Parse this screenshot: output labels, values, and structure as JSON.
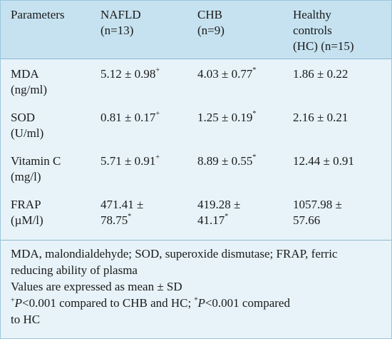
{
  "table": {
    "header": {
      "parameters": "Parameters",
      "nafld_1": "NAFLD",
      "nafld_2": "(n=13)",
      "chb_1": "CHB",
      "chb_2": "(n=9)",
      "hc_1": "Healthy",
      "hc_2": "controls",
      "hc_3": "(HC) (n=15)"
    },
    "rows": [
      {
        "param_1": "MDA",
        "param_2": "(ng/ml)",
        "nafld_1": "5.12 ± 0.98",
        "nafld_1_sup": "+",
        "nafld_2": "",
        "nafld_2_sup": "",
        "chb_1": "4.03 ± 0.77",
        "chb_1_sup": "*",
        "chb_2": "",
        "chb_2_sup": "",
        "hc_1": "1.86 ± 0.22",
        "hc_2": ""
      },
      {
        "param_1": "SOD",
        "param_2": "(U/ml)",
        "nafld_1": "0.81 ± 0.17",
        "nafld_1_sup": "+",
        "nafld_2": "",
        "nafld_2_sup": "",
        "chb_1": "1.25 ± 0.19",
        "chb_1_sup": "*",
        "chb_2": "",
        "chb_2_sup": "",
        "hc_1": "2.16 ± 0.21",
        "hc_2": ""
      },
      {
        "param_1": "Vitamin C",
        "param_2": "(mg/l)",
        "nafld_1": "5.71 ± 0.91",
        "nafld_1_sup": "+",
        "nafld_2": "",
        "nafld_2_sup": "",
        "chb_1": "8.89 ± 0.55",
        "chb_1_sup": "*",
        "chb_2": "",
        "chb_2_sup": "",
        "hc_1": "12.44 ± 0.91",
        "hc_2": ""
      },
      {
        "param_1": "FRAP",
        "param_2": "(µM/l)",
        "nafld_1": "471.41 ±",
        "nafld_1_sup": "",
        "nafld_2": "78.75",
        "nafld_2_sup": "*",
        "chb_1": "419.28 ±",
        "chb_1_sup": "",
        "chb_2": "41.17",
        "chb_2_sup": "*",
        "hc_1": "1057.98 ±",
        "hc_2": "57.66"
      }
    ]
  },
  "footnotes": {
    "abbrev": "MDA, malondialdehyde; SOD, superoxide dismutase; FRAP, ferric reducing ability of plasma",
    "values": "Values are expressed as mean ± SD",
    "sig_plus_mark": "+",
    "sig_p1": "P",
    "sig_text1": "<0.001 compared to CHB and HC; ",
    "sig_star_mark": "*",
    "sig_p2": "P",
    "sig_text2": "<0.001 compared",
    "sig_line2": "to HC"
  }
}
